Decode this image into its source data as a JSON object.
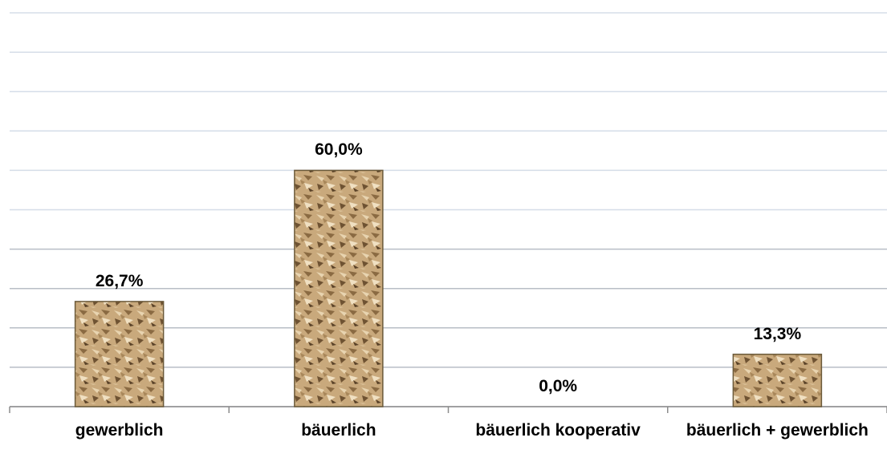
{
  "chart_data": {
    "type": "bar",
    "categories": [
      "gewerblich",
      "bäuerlich",
      "bäuerlich kooperativ",
      "bäuerlich + gewerblich"
    ],
    "values": [
      26.7,
      60.0,
      0.0,
      13.3
    ],
    "value_labels": [
      "26,7%",
      "60,0%",
      "0,0%",
      "13,3%"
    ],
    "color": "#c9a97c",
    "ylim": [
      0,
      100
    ],
    "yticks": [
      0,
      10,
      20,
      30,
      40,
      50,
      60,
      70,
      80,
      90,
      100
    ],
    "grid": true
  }
}
